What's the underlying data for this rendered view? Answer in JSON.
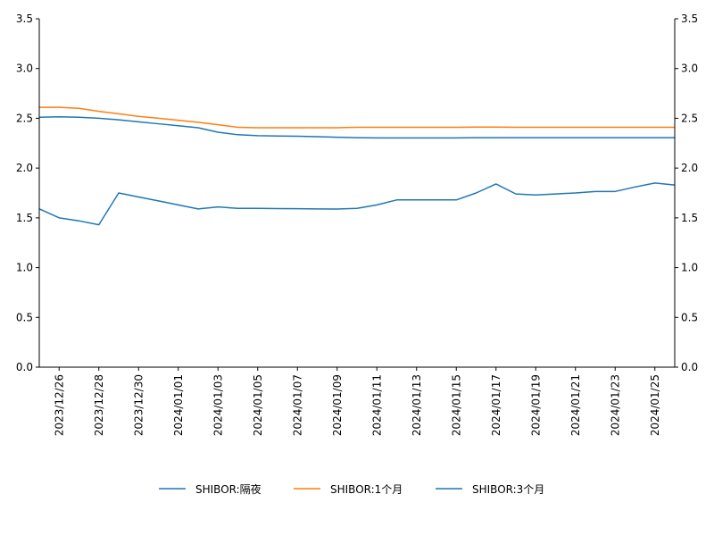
{
  "chart_data": {
    "type": "line",
    "title": "",
    "xlabel": "",
    "ylabel_left": "",
    "ylabel_right": "",
    "ylim": [
      0,
      3.5
    ],
    "yticks": [
      0.0,
      0.5,
      1.0,
      1.5,
      2.0,
      2.5,
      3.0,
      3.5
    ],
    "ytick_labels": [
      "0.0",
      "0.5",
      "1.0",
      "1.5",
      "2.0",
      "2.5",
      "3.0",
      "3.5"
    ],
    "grid": false,
    "legend_position": "bottom-center",
    "x": [
      "2023/12/25",
      "2023/12/26",
      "2023/12/27",
      "2023/12/28",
      "2023/12/29",
      "2023/12/30",
      "2023/12/31",
      "2024/01/01",
      "2024/01/02",
      "2024/01/03",
      "2024/01/04",
      "2024/01/05",
      "2024/01/06",
      "2024/01/07",
      "2024/01/08",
      "2024/01/09",
      "2024/01/10",
      "2024/01/11",
      "2024/01/12",
      "2024/01/13",
      "2024/01/14",
      "2024/01/15",
      "2024/01/16",
      "2024/01/17",
      "2024/01/18",
      "2024/01/19",
      "2024/01/20",
      "2024/01/21",
      "2024/01/22",
      "2024/01/23",
      "2024/01/24",
      "2024/01/25",
      "2024/01/26"
    ],
    "xtick_labels": [
      "2023/12/26",
      "2023/12/28",
      "2023/12/30",
      "2024/01/01",
      "2024/01/03",
      "2024/01/05",
      "2024/01/07",
      "2024/01/09",
      "2024/01/11",
      "2024/01/13",
      "2024/01/15",
      "2024/01/17",
      "2024/01/19",
      "2024/01/21",
      "2024/01/23",
      "2024/01/25"
    ],
    "series": [
      {
        "name": "SHIBOR:隔夜",
        "color": "#1f77b4",
        "values": [
          1.59,
          1.5,
          1.47,
          1.43,
          1.75,
          1.71,
          1.67,
          1.63,
          1.59,
          1.61,
          1.595,
          1.595,
          1.593,
          1.592,
          1.59,
          1.588,
          1.595,
          1.63,
          1.68,
          1.68,
          1.68,
          1.68,
          1.75,
          1.84,
          1.74,
          1.73,
          1.74,
          1.75,
          1.765,
          1.765,
          1.81,
          1.85,
          1.83
        ]
      },
      {
        "name": "SHIBOR:1个月",
        "color": "#ff7f0e",
        "values": [
          2.61,
          2.61,
          2.6,
          2.57,
          2.545,
          2.52,
          2.5,
          2.48,
          2.46,
          2.435,
          2.41,
          2.405,
          2.405,
          2.405,
          2.405,
          2.405,
          2.41,
          2.41,
          2.41,
          2.41,
          2.41,
          2.41,
          2.412,
          2.412,
          2.41,
          2.41,
          2.41,
          2.41,
          2.41,
          2.41,
          2.41,
          2.41,
          2.41
        ]
      },
      {
        "name": "SHIBOR:3个月",
        "color": "#1f77b4",
        "values": [
          2.51,
          2.515,
          2.51,
          2.5,
          2.485,
          2.465,
          2.445,
          2.425,
          2.405,
          2.36,
          2.335,
          2.325,
          2.322,
          2.32,
          2.315,
          2.31,
          2.305,
          2.303,
          2.303,
          2.303,
          2.303,
          2.303,
          2.305,
          2.305,
          2.305,
          2.305,
          2.305,
          2.305,
          2.305,
          2.305,
          2.305,
          2.305,
          2.305
        ]
      }
    ]
  }
}
